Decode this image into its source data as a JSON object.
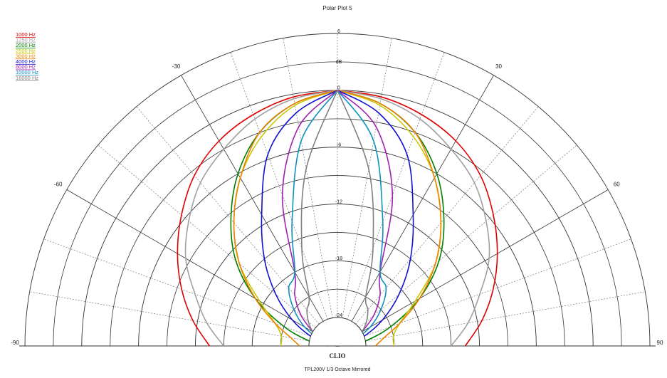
{
  "chart_data": {
    "type": "polar",
    "title": "Polar Plot 5",
    "subtitle": "TPL200V  1/3 Octave  Mirrored",
    "brand": "CLIO",
    "r_unit": "dB",
    "mirrored": true,
    "x": [
      0,
      10,
      20,
      30,
      40,
      50,
      60,
      70,
      80,
      90
    ],
    "rlim": [
      -27,
      6
    ],
    "rticks": [
      -24,
      -18,
      -12,
      -6,
      0,
      6
    ],
    "rminor": [
      -21,
      -15,
      -9,
      -3,
      3
    ],
    "xticks": [
      -90,
      -60,
      -30,
      30,
      60,
      90
    ],
    "xminor": [
      -80,
      -70,
      -50,
      -40,
      -20,
      -10,
      0,
      10,
      20,
      40,
      50,
      70,
      80
    ],
    "series": [
      {
        "name": "1000 Hz",
        "color": "#e00000",
        "values": [
          0,
          -0.3,
          -1,
          -2,
          -3.5,
          -5.5,
          -7.5,
          -9.5,
          -11.5,
          -13.5
        ]
      },
      {
        "name": "1250 Hz",
        "color": "#a0a0a0",
        "values": [
          0,
          -0.5,
          -1.5,
          -3,
          -4.5,
          -6.5,
          -8.5,
          -11,
          -13,
          -15
        ]
      },
      {
        "name": "2000 Hz",
        "color": "#008000",
        "values": [
          0,
          -1,
          -3,
          -6,
          -9.5,
          -13,
          -17,
          -21,
          -24,
          -26
        ]
      },
      {
        "name": "2500 Hz",
        "color": "#c8c800",
        "values": [
          0,
          -1.2,
          -3.5,
          -6.5,
          -10,
          -13.5,
          -17.5,
          -20,
          -21,
          -21
        ]
      },
      {
        "name": "3000 Hz",
        "color": "#f08000",
        "values": [
          0,
          -1,
          -3,
          -6.5,
          -10,
          -13.5,
          -17,
          -20,
          -22,
          -23
        ]
      },
      {
        "name": "4000 Hz",
        "color": "#1010d0",
        "values": [
          0,
          -2,
          -5.5,
          -11,
          -15,
          -18.5,
          -21.5,
          -24,
          -26,
          -27
        ]
      },
      {
        "name": "8000 Hz",
        "color": "#a020b0",
        "values": [
          0,
          -3.5,
          -10,
          -18,
          -20,
          -22,
          -24,
          -25,
          -26,
          -27
        ]
      },
      {
        "name": "10000 Hz",
        "color": "#1090c0",
        "values": [
          0,
          -5,
          -13,
          -18,
          -19,
          -21,
          -23,
          -25,
          -26,
          -27
        ]
      },
      {
        "name": "16000 Hz",
        "color": "#808080",
        "values": [
          0,
          -8,
          -16,
          -21,
          -22,
          -23,
          -24,
          -25,
          -26,
          -27
        ]
      }
    ]
  }
}
